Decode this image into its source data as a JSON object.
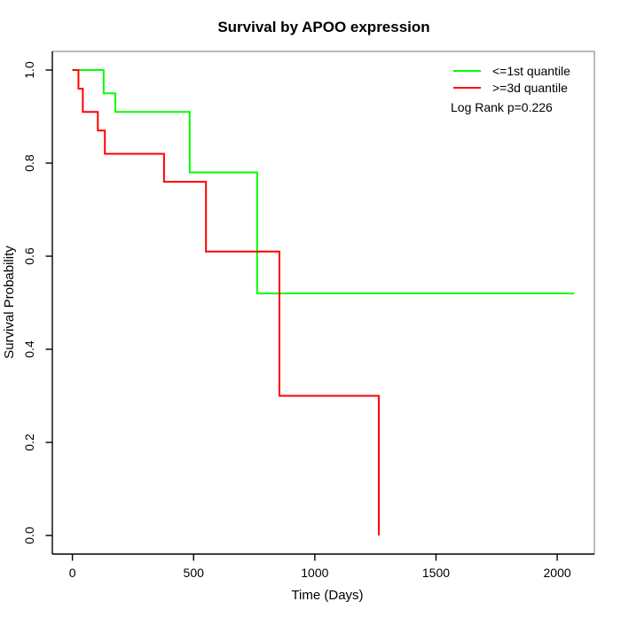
{
  "title": "Survival by APOO expression",
  "chart_data": {
    "type": "line",
    "subtype": "kaplan-meier-step",
    "title": "Survival by APOO expression",
    "xlabel": "Time (Days)",
    "ylabel": "Survival Probability",
    "xlim": [
      0,
      2070
    ],
    "ylim": [
      0.0,
      1.0
    ],
    "grid": false,
    "legend_position": "top-right",
    "annotation": "Log Rank p=0.226",
    "x_ticks": {
      "values": [
        0,
        500,
        1000,
        1500,
        2000
      ],
      "labels": [
        "0",
        "500",
        "1000",
        "1500",
        "2000"
      ]
    },
    "y_ticks": {
      "values": [
        0.0,
        0.2,
        0.4,
        0.6,
        0.8,
        1.0
      ],
      "labels": [
        "0.0",
        "0.2",
        "0.4",
        "0.6",
        "0.8",
        "1.0"
      ]
    },
    "series": [
      {
        "name": "<=1st quantile",
        "color": "#00ff00",
        "start": [
          0,
          1.0
        ],
        "drops": [
          [
            129,
            0.95
          ],
          [
            177,
            0.91
          ],
          [
            484,
            0.78
          ],
          [
            762,
            0.52
          ]
        ],
        "end_x": 2070
      },
      {
        "name": ">=3d quantile",
        "color": "#ff0000",
        "start": [
          0,
          1.0
        ],
        "drops": [
          [
            25,
            0.96
          ],
          [
            43,
            0.91
          ],
          [
            105,
            0.87
          ],
          [
            134,
            0.82
          ],
          [
            378,
            0.76
          ],
          [
            551,
            0.61
          ],
          [
            854,
            0.3
          ],
          [
            1264,
            0.0
          ]
        ],
        "end_x": 1264
      }
    ]
  },
  "colors": {
    "background": "#ffffff",
    "box_border": "#777777",
    "axis": "#000000",
    "text": "#000000"
  }
}
